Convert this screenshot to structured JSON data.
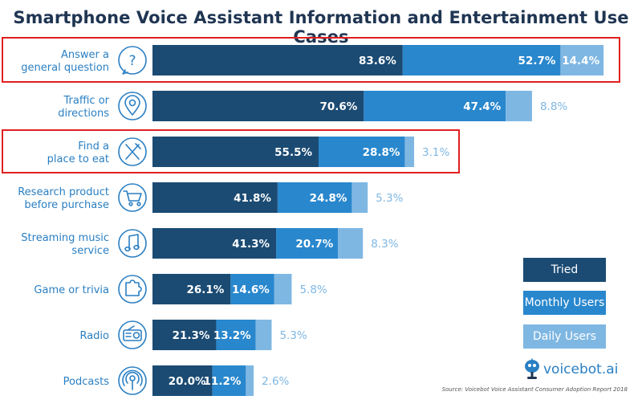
{
  "chart_data": {
    "type": "bar",
    "orientation": "horizontal",
    "title": "Smartphone Voice Assistant Information and Entertainment Use Cases",
    "categories": [
      [
        "Answer a",
        "general question"
      ],
      [
        "Traffic or",
        "directions"
      ],
      [
        "Find a",
        "place to eat"
      ],
      [
        "Research product",
        "before purchase"
      ],
      [
        "Streaming music",
        "service"
      ],
      [
        "Game or trivia"
      ],
      [
        "Radio"
      ],
      [
        "Podcasts"
      ]
    ],
    "category_icons": [
      "question-bubble-icon",
      "location-pin-icon",
      "utensils-icon",
      "shopping-cart-icon",
      "music-note-icon",
      "puzzle-piece-icon",
      "radio-icon",
      "podcast-icon"
    ],
    "series": [
      {
        "name": "Tried",
        "values": [
          83.6,
          70.6,
          55.5,
          41.8,
          41.3,
          26.1,
          21.3,
          20.0
        ]
      },
      {
        "name": "Monthly Users",
        "values": [
          52.7,
          47.4,
          28.8,
          24.8,
          20.7,
          14.6,
          13.2,
          11.2
        ]
      },
      {
        "name": "Daily Users",
        "values": [
          14.4,
          8.8,
          3.1,
          5.3,
          8.3,
          5.8,
          5.3,
          2.6
        ]
      }
    ],
    "value_suffix": "%",
    "stacking": "overlapping from left: Tried bar, then Monthly and Daily segments follow",
    "colors": {
      "tried": "#1b4b73",
      "monthly": "#2987cd",
      "daily": "#7fb7e3",
      "label": "#2a7fc3"
    },
    "legend": {
      "position": "right",
      "entries": [
        "Tried",
        "Monthly Users",
        "Daily Users"
      ]
    },
    "highlighted_categories": [
      "Answer a general question",
      "Find a place to eat"
    ],
    "highlight_color": "#e02020"
  },
  "brand": {
    "name": "voicebot.ai",
    "icon": "robot-mascot-icon"
  },
  "source": "Source: Voicebot Voice Assistant Consumer Adoption Report 2018"
}
